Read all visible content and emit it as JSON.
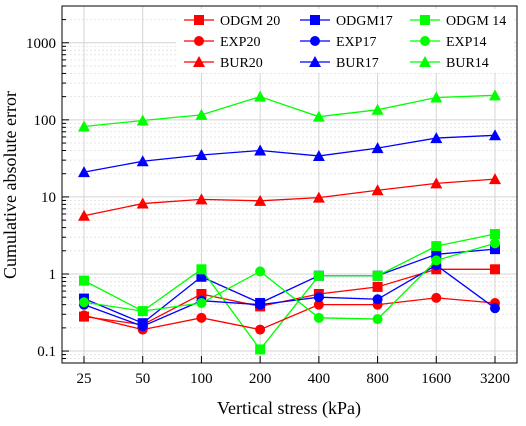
{
  "chart_data": {
    "type": "line",
    "xlabel": "Vertical stress (kPa)",
    "ylabel": "Cumulative absolute error",
    "yscale": "log",
    "ylim": [
      0.07,
      3000
    ],
    "categories": [
      "25",
      "50",
      "100",
      "200",
      "400",
      "800",
      "1600",
      "3200"
    ],
    "yticks": [
      "0.1",
      "1",
      "10",
      "100",
      "1000"
    ],
    "grid": true,
    "legend_position": "top",
    "series": [
      {
        "name": "ODGM 20",
        "color": "#ff0000",
        "marker": "square",
        "values": [
          0.28,
          0.22,
          0.55,
          0.38,
          0.55,
          0.68,
          1.15,
          1.15
        ]
      },
      {
        "name": "ODGM17",
        "color": "#0000ff",
        "marker": "square",
        "values": [
          0.48,
          0.23,
          0.92,
          0.42,
          0.95,
          0.95,
          1.8,
          2.1
        ]
      },
      {
        "name": "ODGM 14",
        "color": "#00ff00",
        "marker": "square",
        "values": [
          0.82,
          0.33,
          1.15,
          0.105,
          0.95,
          0.95,
          2.3,
          3.3
        ]
      },
      {
        "name": "EXP20",
        "color": "#ff0000",
        "marker": "circle",
        "values": [
          0.29,
          0.19,
          0.27,
          0.19,
          0.4,
          0.4,
          0.49,
          0.42
        ]
      },
      {
        "name": "EXP17",
        "color": "#0000ff",
        "marker": "circle",
        "values": [
          0.4,
          0.21,
          0.45,
          0.4,
          0.5,
          0.47,
          1.3,
          0.36
        ]
      },
      {
        "name": "EXP14",
        "color": "#00ff00",
        "marker": "circle",
        "values": [
          0.43,
          0.33,
          0.42,
          1.08,
          0.27,
          0.26,
          1.5,
          2.5
        ]
      },
      {
        "name": "BUR20",
        "color": "#ff0000",
        "marker": "triangle",
        "values": [
          5.7,
          8.2,
          9.3,
          8.9,
          9.8,
          12.2,
          15.0,
          17.0
        ]
      },
      {
        "name": "BUR17",
        "color": "#0000ff",
        "marker": "triangle",
        "values": [
          21,
          29,
          35,
          40,
          34,
          43,
          58,
          63
        ]
      },
      {
        "name": "BUR14",
        "color": "#00ff00",
        "marker": "triangle",
        "values": [
          82,
          98,
          116,
          200,
          110,
          135,
          195,
          208
        ]
      }
    ]
  }
}
